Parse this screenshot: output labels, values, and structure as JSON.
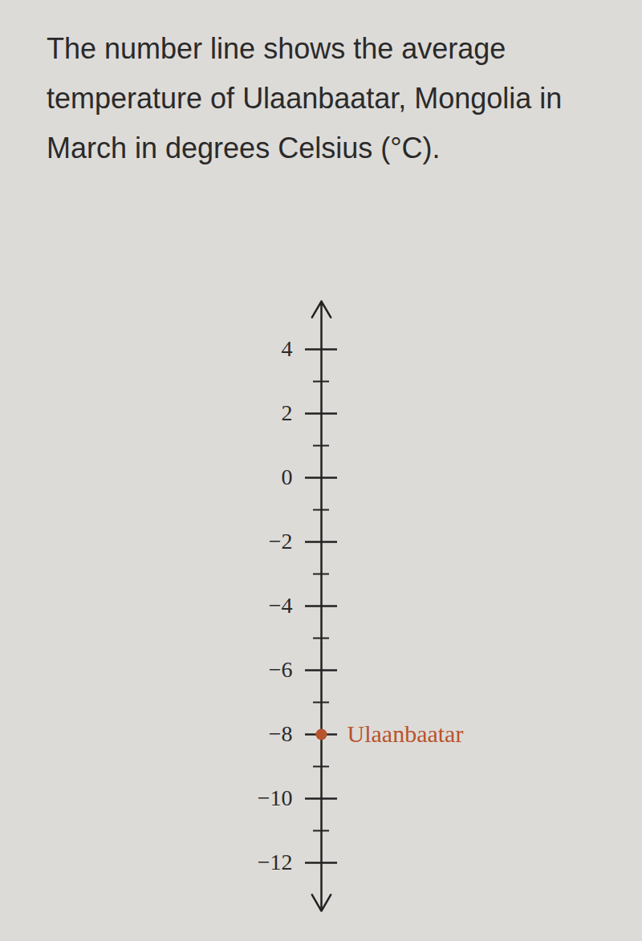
{
  "chart_data": {
    "type": "numberline",
    "title": "The number line shows the average temperature of Ulaanbaatar, Mongolia in March in degrees Celsius (°C).",
    "categories": [
      "Ulaanbaatar"
    ],
    "values": [
      -8
    ],
    "color": "#b8532c",
    "ylim": [
      -13.5,
      5.5
    ],
    "yticks": [
      -12,
      -10,
      -8,
      -6,
      -4,
      -2,
      0,
      2,
      4
    ],
    "minor_yticks": [
      -11,
      -9,
      -7,
      -5,
      -3,
      -1,
      1,
      3
    ],
    "data_labels": false
  }
}
